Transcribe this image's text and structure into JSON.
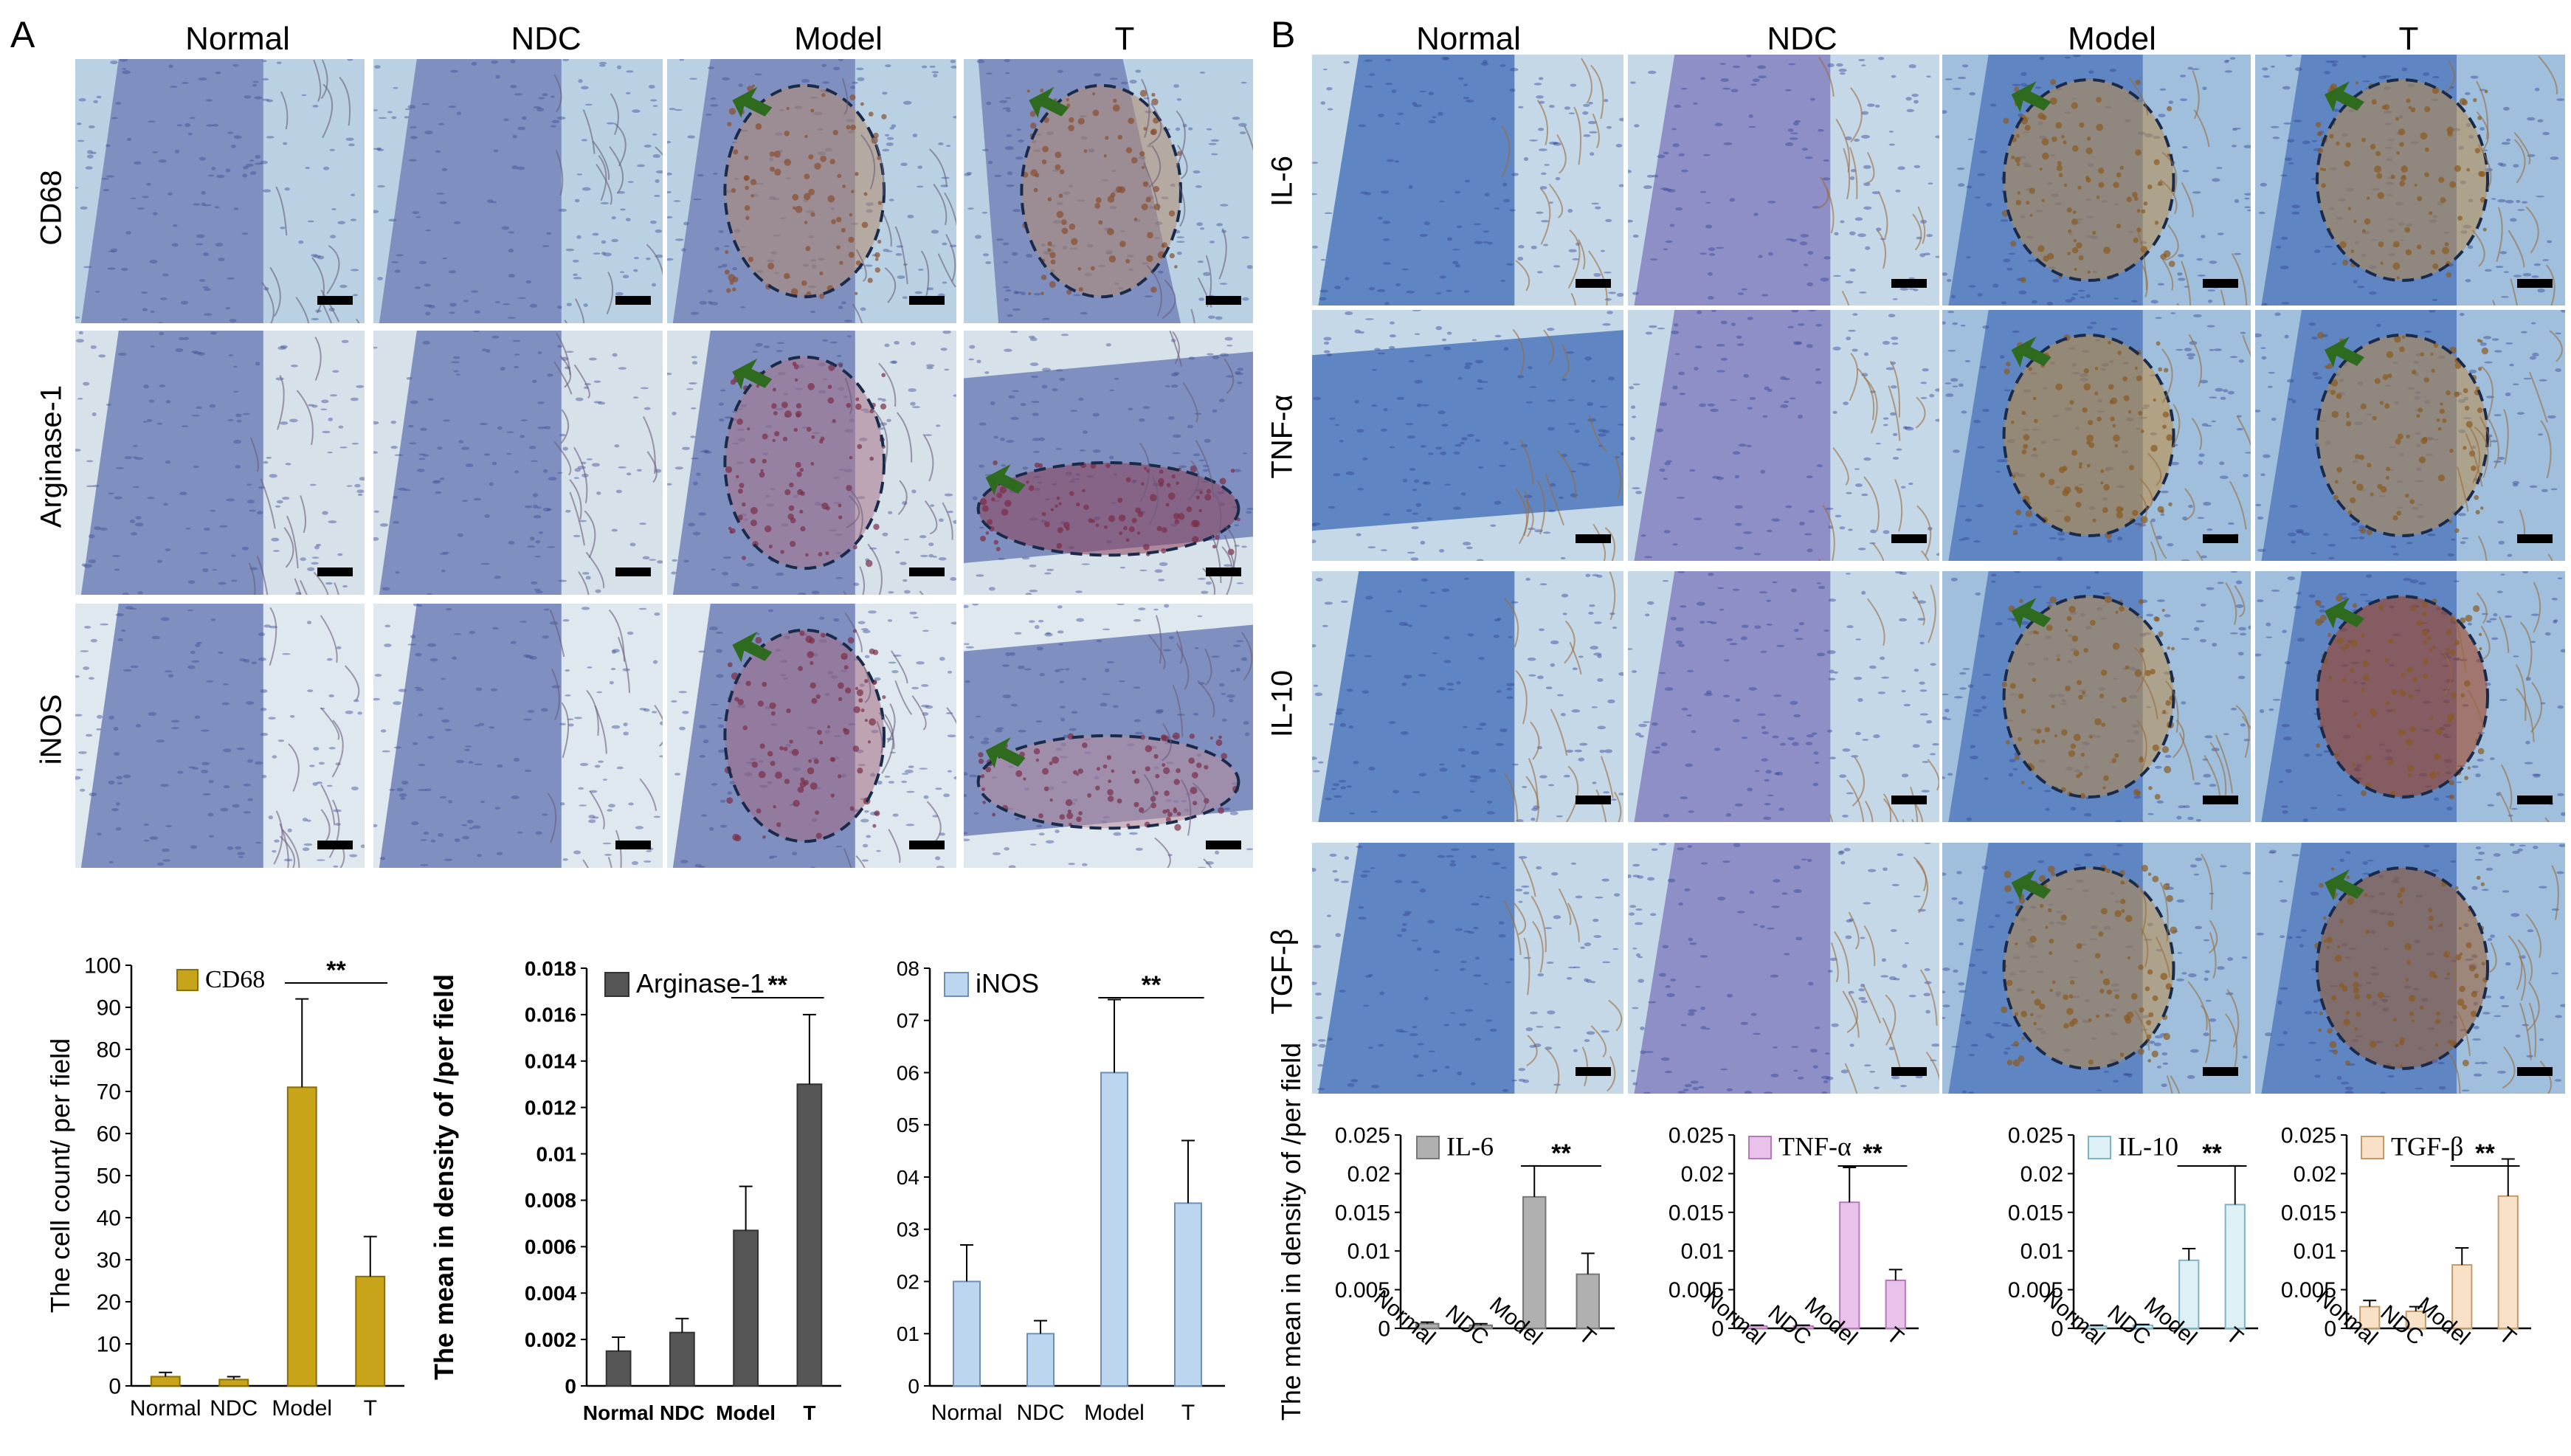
{
  "panels": {
    "A": {
      "letter": "A",
      "columns": [
        "Normal",
        "NDC",
        "Model",
        "T"
      ],
      "rows": [
        "CD68",
        "Arginase-1",
        "iNOS"
      ]
    },
    "B": {
      "letter": "B",
      "columns": [
        "Normal",
        "NDC",
        "Model",
        "T"
      ],
      "rows": [
        "IL-6",
        "TNF-α",
        "IL-10",
        "TGF-β"
      ]
    }
  },
  "colors": {
    "cd68": "#c8a41a",
    "arginase": "#555555",
    "inos": "#bcd6ef",
    "il6": "#b0b0b0",
    "tnfa": "#e8c2ea",
    "il10": "#dcf0f6",
    "tgfb": "#f8e1c6",
    "arrow": "#2e6b1f",
    "outline": "#1a2a4a"
  },
  "chart_data": [
    {
      "type": "bar",
      "legend": "CD68",
      "categories": [
        "Normal",
        "NDC",
        "Model",
        "T"
      ],
      "values": [
        2.2,
        1.5,
        71,
        26
      ],
      "errors": [
        1.0,
        0.7,
        21,
        9.5
      ],
      "ylabel": "The cell count/ per field",
      "ylim": [
        0,
        100
      ],
      "yticks": [
        "0",
        "10",
        "20",
        "30",
        "40",
        "50",
        "60",
        "70",
        "80",
        "90",
        "100"
      ],
      "significance": "**"
    },
    {
      "type": "bar",
      "legend": "Arginase-1",
      "categories": [
        "Normal",
        "NDC",
        "Model",
        "T"
      ],
      "values": [
        0.0015,
        0.0023,
        0.0067,
        0.013
      ],
      "errors": [
        0.0006,
        0.0006,
        0.0019,
        0.003
      ],
      "ylabel": "The mean in density of /per field",
      "ylim": [
        0,
        0.018
      ],
      "yticks": [
        "0",
        "0.002",
        "0.004",
        "0.006",
        "0.008",
        "0.01",
        "0.012",
        "0.014",
        "0.016",
        "0.018"
      ],
      "significance": "**"
    },
    {
      "type": "bar",
      "legend": "iNOS",
      "categories": [
        "Normal",
        "NDC",
        "Model",
        "T"
      ],
      "values": [
        2.0,
        1.0,
        6.0,
        3.5
      ],
      "errors": [
        0.7,
        0.25,
        1.4,
        1.2
      ],
      "ylabel": "",
      "ylim": [
        0,
        8
      ],
      "yticks": [
        "0",
        "01",
        "02",
        "03",
        "04",
        "05",
        "06",
        "07",
        "08"
      ],
      "significance": "**"
    },
    {
      "type": "bar",
      "legend": "IL-6",
      "categories": [
        "Normal",
        "NDC",
        "Model",
        "T"
      ],
      "values": [
        0.0006,
        0.0004,
        0.017,
        0.007
      ],
      "errors": [
        0.0002,
        0.0002,
        0.004,
        0.0027
      ],
      "ylabel": "The mean in density of /per field",
      "ylim": [
        0,
        0.025
      ],
      "yticks": [
        "0",
        "0.005",
        "0.01",
        "0.015",
        "0.02",
        "0.025"
      ],
      "significance": "**"
    },
    {
      "type": "bar",
      "legend": "TNF-α",
      "categories": [
        "Normal",
        "NDC",
        "Model",
        "T"
      ],
      "values": [
        0.0003,
        0.0003,
        0.0163,
        0.0062
      ],
      "errors": [
        0.0001,
        0.0001,
        0.0045,
        0.0014
      ],
      "ylabel": "",
      "ylim": [
        0,
        0.025
      ],
      "yticks": [
        "0",
        "0.005",
        "0.01",
        "0.015",
        "0.02",
        "0.025"
      ],
      "significance": "**"
    },
    {
      "type": "bar",
      "legend": "IL-10",
      "categories": [
        "Normal",
        "NDC",
        "Model",
        "T"
      ],
      "values": [
        0.0003,
        0.0004,
        0.0088,
        0.016
      ],
      "errors": [
        0.0001,
        0.0001,
        0.0015,
        0.005
      ],
      "ylabel": "",
      "ylim": [
        0,
        0.025
      ],
      "yticks": [
        "0",
        "0.005",
        "0.01",
        "0.015",
        "0.02",
        "0.025"
      ],
      "significance": "**"
    },
    {
      "type": "bar",
      "legend": "TGF-β",
      "categories": [
        "Normal",
        "NDC",
        "Model",
        "T"
      ],
      "values": [
        0.0028,
        0.0022,
        0.0082,
        0.0171
      ],
      "errors": [
        0.0008,
        0.0006,
        0.0022,
        0.0048
      ],
      "ylabel": "",
      "ylim": [
        0,
        0.025
      ],
      "yticks": [
        "0",
        "0.005",
        "0.01",
        "0.015",
        "0.02",
        "0.025"
      ],
      "significance": "**"
    }
  ]
}
